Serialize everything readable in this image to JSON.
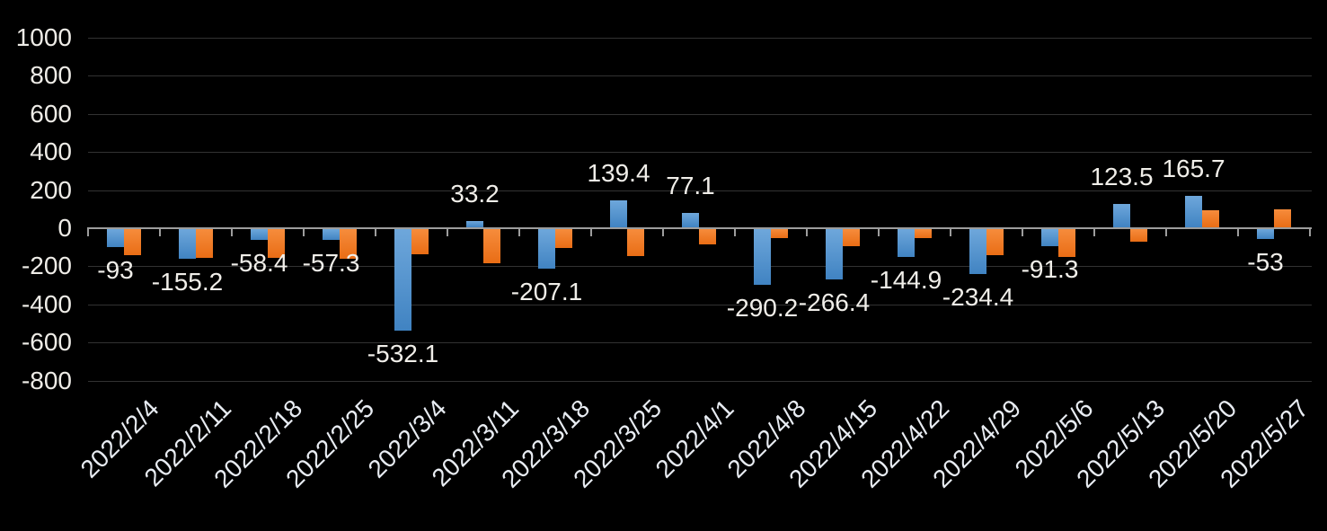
{
  "chart_data": {
    "type": "bar",
    "title": "",
    "categories": [
      "2022/2/4",
      "2022/2/11",
      "2022/2/18",
      "2022/2/25",
      "2022/3/4",
      "2022/3/11",
      "2022/3/18",
      "2022/3/25",
      "2022/4/1",
      "2022/4/8",
      "2022/4/15",
      "2022/4/22",
      "2022/4/29",
      "2022/5/6",
      "2022/5/13",
      "2022/5/20",
      "2022/5/27"
    ],
    "series": [
      {
        "key": "blue",
        "values": [
          -93,
          -155.2,
          -58.4,
          -57.3,
          -532.1,
          33.2,
          -207.1,
          139.4,
          77.1,
          -290.2,
          -266.4,
          -144.9,
          -234.4,
          -91.3,
          123.5,
          165.7,
          -53
        ],
        "data_labels": [
          "-93",
          "-155.2",
          "-58.4",
          "-57.3",
          "-532.1",
          "33.2",
          "-207.1",
          "139.4",
          "77.1",
          "-290.2",
          "-266.4",
          "-144.9",
          "-234.4",
          "-91.3",
          "123.5",
          "165.7",
          "-53"
        ],
        "show_labels": true,
        "color_top": "#6ea7db",
        "color_bottom": "#4083c2"
      },
      {
        "key": "orange",
        "values": [
          -138,
          -152,
          -153,
          -158,
          -130,
          -181,
          -100,
          -143,
          -80,
          -46,
          -91,
          -46,
          -135,
          -148,
          -68,
          91,
          95
        ],
        "show_labels": false,
        "color_top": "#f68c3c",
        "color_bottom": "#e96d15"
      }
    ],
    "y_axis": {
      "min": -800,
      "max": 1000,
      "tick_step": 200,
      "tick_labels": [
        "1000",
        "800",
        "600",
        "400",
        "200",
        "0",
        "-200",
        "-400",
        "-600",
        "-800"
      ]
    },
    "grid": true,
    "legend_position": "none",
    "x_label_rotation_deg": 45,
    "colors": {
      "background": "#000000",
      "gridline": "#323232",
      "axis_line": "#9d9d9d",
      "tick": "#9d9d9d",
      "y_label_text": "#eeece7",
      "x_label_text": "#e8ecf2",
      "data_label_text": "#f0eee9"
    }
  }
}
